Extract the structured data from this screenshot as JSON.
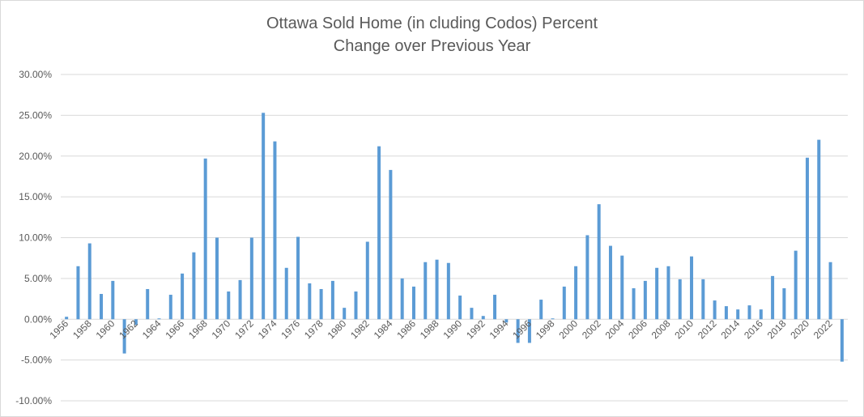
{
  "chart_data": {
    "type": "bar",
    "title_line1": "Ottawa Sold Home (in cluding Codos) Percent",
    "title_line2": "Change over Previous Year",
    "xlabel": "",
    "ylabel": "",
    "ylim": [
      -10,
      30
    ],
    "y_ticks": [
      "30.00%",
      "25.00%",
      "20.00%",
      "15.00%",
      "10.00%",
      "5.00%",
      "0.00%",
      "-5.00%",
      "-10.00%"
    ],
    "grid": true,
    "legend": "none",
    "bar_color": "#5b9bd5",
    "x_tick_labels": [
      "1956",
      "1958",
      "1960",
      "1962",
      "1964",
      "1966",
      "1968",
      "1970",
      "1972",
      "1974",
      "1976",
      "1978",
      "1980",
      "1982",
      "1984",
      "1986",
      "1988",
      "1990",
      "1992",
      "1994",
      "1996",
      "1998",
      "2000",
      "2002",
      "2004",
      "2006",
      "2008",
      "2010",
      "2012",
      "2014",
      "2016",
      "2018",
      "2020",
      "2022"
    ],
    "categories": [
      "1956",
      "1957",
      "1958",
      "1959",
      "1960",
      "1961",
      "1962",
      "1963",
      "1964",
      "1965",
      "1966",
      "1967",
      "1968",
      "1969",
      "1970",
      "1971",
      "1972",
      "1973",
      "1974",
      "1975",
      "1976",
      "1977",
      "1978",
      "1979",
      "1980",
      "1981",
      "1982",
      "1983",
      "1984",
      "1985",
      "1986",
      "1987",
      "1988",
      "1989",
      "1990",
      "1991",
      "1992",
      "1993",
      "1994",
      "1995",
      "1996",
      "1997",
      "1998",
      "1999",
      "2000",
      "2001",
      "2002",
      "2003",
      "2004",
      "2005",
      "2006",
      "2007",
      "2008",
      "2009",
      "2010",
      "2011",
      "2012",
      "2013",
      "2014",
      "2015",
      "2016",
      "2017",
      "2018",
      "2019",
      "2020",
      "2021",
      "2022",
      "2023"
    ],
    "values": [
      0.3,
      6.5,
      9.3,
      3.1,
      4.7,
      -4.2,
      -0.7,
      3.7,
      0.1,
      3.0,
      5.6,
      8.2,
      19.7,
      10.0,
      3.4,
      4.8,
      10.0,
      25.3,
      21.8,
      6.3,
      10.1,
      4.4,
      3.7,
      4.7,
      1.4,
      3.4,
      9.5,
      21.2,
      18.3,
      5.0,
      4.0,
      7.0,
      7.3,
      6.9,
      2.9,
      1.4,
      0.4,
      3.0,
      -0.4,
      -2.9,
      -2.9,
      2.4,
      0.1,
      4.0,
      6.5,
      10.3,
      14.1,
      9.0,
      7.8,
      3.8,
      4.7,
      6.3,
      6.5,
      4.9,
      7.7,
      4.9,
      2.3,
      1.6,
      1.2,
      1.7,
      1.2,
      5.3,
      3.8,
      8.4,
      19.8,
      22.0,
      7.0,
      -5.2
    ]
  }
}
